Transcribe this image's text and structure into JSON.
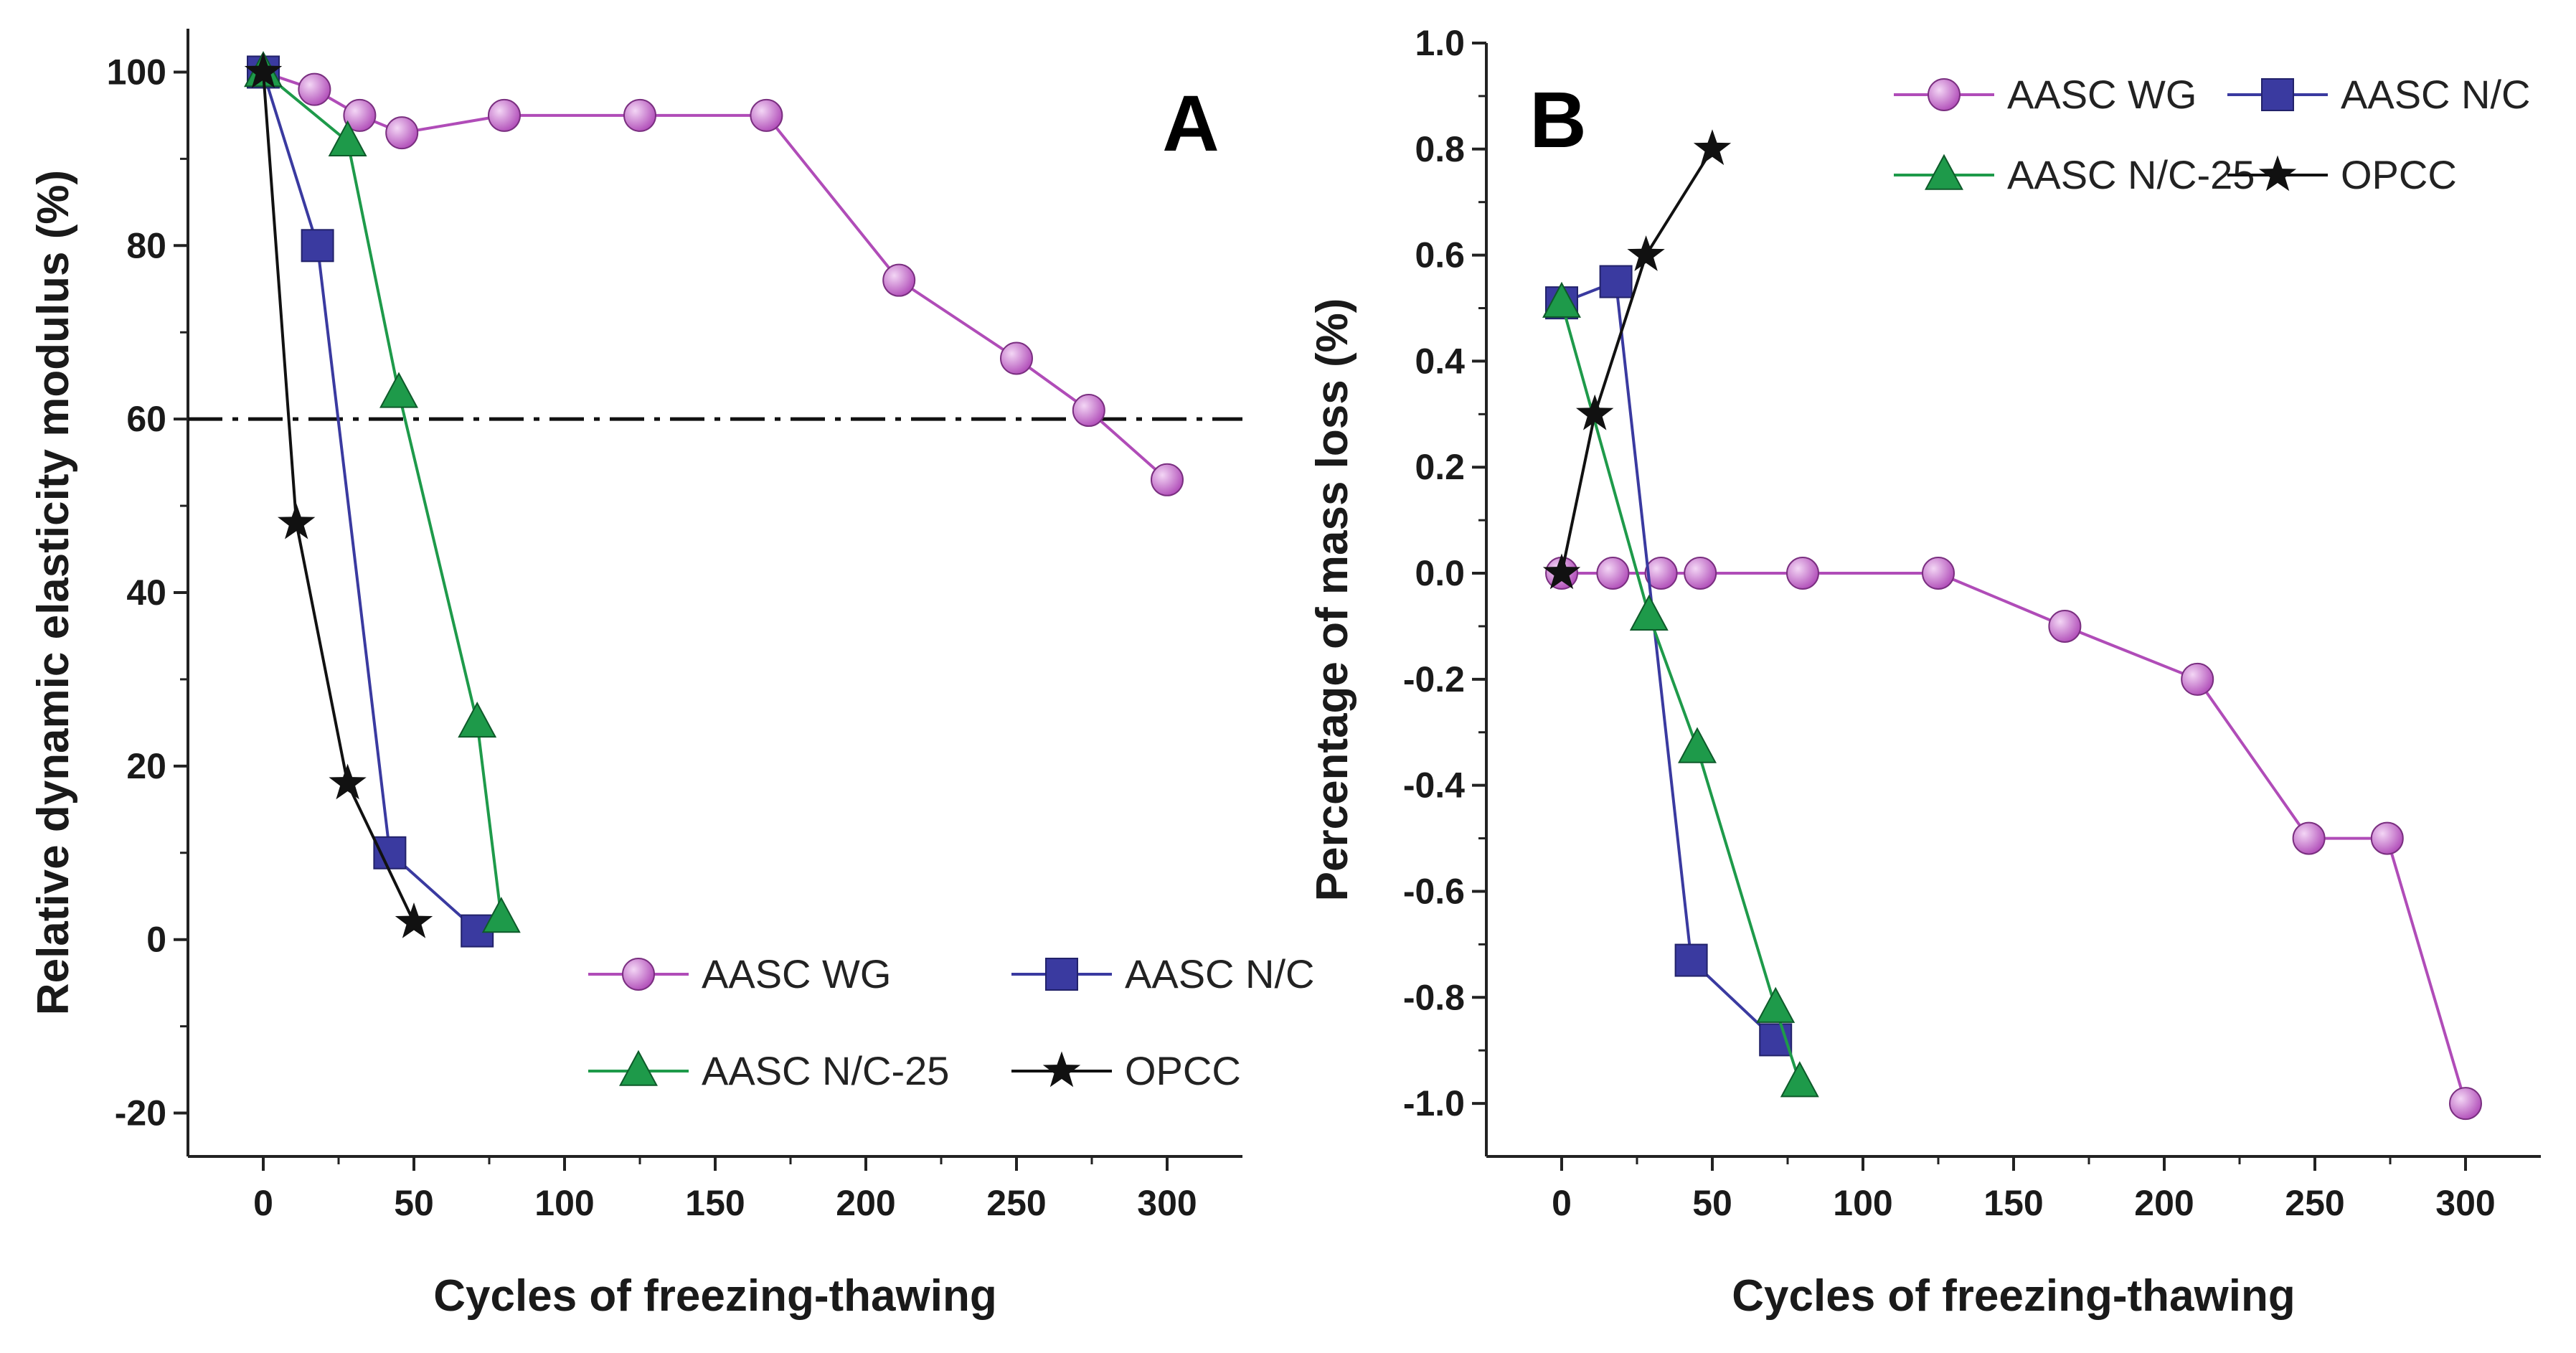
{
  "figure": {
    "description_free": true
  },
  "chart_data": [
    {
      "type": "line",
      "panel_label": "A",
      "xlabel": "Cycles of freezing-thawing",
      "ylabel": "Relative dynamic  elasticity modulus (%)",
      "xlim": [
        -25,
        325
      ],
      "ylim": [
        -25,
        105
      ],
      "xticks": [
        0,
        50,
        100,
        150,
        200,
        250,
        300
      ],
      "yticks": [
        -20,
        0,
        20,
        40,
        60,
        80,
        100
      ],
      "reference_line": {
        "y": 60,
        "style": "dash-dot"
      },
      "legend_position": "bottom-right",
      "legend_columns": 2,
      "series": [
        {
          "name": "AASC WG",
          "marker": "circle",
          "color": "#b04cb8",
          "x": [
            0,
            17,
            32,
            46,
            80,
            125,
            167,
            211,
            250,
            274,
            300
          ],
          "y": [
            100,
            98,
            95,
            93,
            95,
            95,
            95,
            76,
            67,
            61,
            53
          ]
        },
        {
          "name": "AASC N/C",
          "marker": "square",
          "color": "#3a3aa0",
          "x": [
            0,
            18,
            42,
            71
          ],
          "y": [
            100,
            80,
            10,
            1
          ]
        },
        {
          "name": "AASC N/C-25",
          "marker": "triangle",
          "color": "#1e9a4a",
          "x": [
            0,
            28,
            45,
            71,
            79
          ],
          "y": [
            100,
            92,
            63,
            25,
            2.5
          ]
        },
        {
          "name": "OPCC",
          "marker": "star",
          "color": "#111111",
          "x": [
            0,
            11,
            28,
            50
          ],
          "y": [
            100,
            48,
            18,
            2
          ]
        }
      ]
    },
    {
      "type": "line",
      "panel_label": "B",
      "xlabel": "Cycles of freezing-thawing",
      "ylabel": "Percentage of mass loss (%)",
      "xlim": [
        -25,
        325
      ],
      "ylim": [
        -1.1,
        1.0
      ],
      "xticks": [
        0,
        50,
        100,
        150,
        200,
        250,
        300
      ],
      "yticks": [
        -1.0,
        -0.8,
        -0.6,
        -0.4,
        -0.2,
        0.0,
        0.2,
        0.4,
        0.6,
        0.8,
        1.0
      ],
      "legend_position": "top-right",
      "legend_columns": 2,
      "series": [
        {
          "name": "AASC WG",
          "marker": "circle",
          "color": "#b04cb8",
          "x": [
            0,
            17,
            33,
            46,
            80,
            125,
            167,
            211,
            248,
            274,
            300
          ],
          "y": [
            0,
            0,
            0,
            0,
            0,
            0,
            -0.1,
            -0.2,
            -0.5,
            -0.5,
            -1.0
          ]
        },
        {
          "name": "AASC N/C",
          "marker": "square",
          "color": "#3a3aa0",
          "x": [
            0,
            18,
            43,
            71
          ],
          "y": [
            0.51,
            0.55,
            -0.73,
            -0.88
          ]
        },
        {
          "name": "AASC N/C-25",
          "marker": "triangle",
          "color": "#1e9a4a",
          "x": [
            0,
            29,
            45,
            71,
            79
          ],
          "y": [
            0.51,
            -0.08,
            -0.33,
            -0.82,
            -0.96
          ]
        },
        {
          "name": "OPCC",
          "marker": "star",
          "color": "#111111",
          "x": [
            0,
            11,
            28,
            50
          ],
          "y": [
            0,
            0.3,
            0.6,
            0.8
          ]
        }
      ]
    }
  ]
}
